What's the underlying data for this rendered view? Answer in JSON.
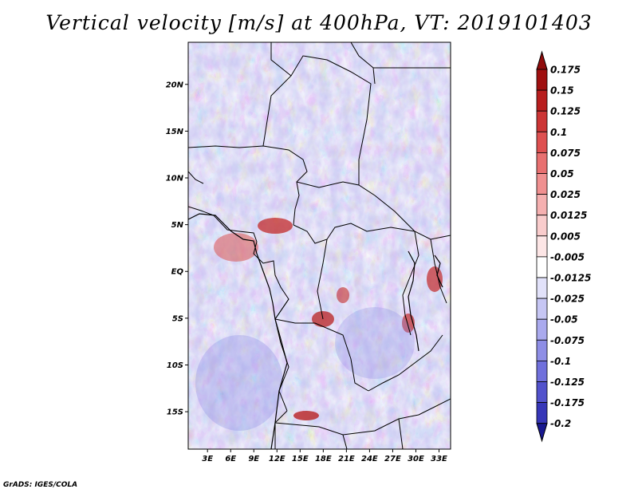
{
  "title": "Vertical velocity [m/s] at 400hPa, VT: 2019101403",
  "footer": "GrADS: IGES/COLA",
  "map": {
    "lat_range": [
      -19,
      24.5
    ],
    "lon_range": [
      0.5,
      34.5
    ],
    "lat_ticks": [
      {
        "value": 20,
        "label": "20N"
      },
      {
        "value": 15,
        "label": "15N"
      },
      {
        "value": 10,
        "label": "10N"
      },
      {
        "value": 5,
        "label": "5N"
      },
      {
        "value": 0,
        "label": "EQ"
      },
      {
        "value": -5,
        "label": "5S"
      },
      {
        "value": -10,
        "label": "10S"
      },
      {
        "value": -15,
        "label": "15S"
      }
    ],
    "lon_ticks": [
      {
        "value": 3,
        "label": "3E"
      },
      {
        "value": 6,
        "label": "6E"
      },
      {
        "value": 9,
        "label": "9E"
      },
      {
        "value": 12,
        "label": "12E"
      },
      {
        "value": 15,
        "label": "15E"
      },
      {
        "value": 18,
        "label": "18E"
      },
      {
        "value": 21,
        "label": "21E"
      },
      {
        "value": 24,
        "label": "24E"
      },
      {
        "value": 27,
        "label": "27E"
      },
      {
        "value": 30,
        "label": "30E"
      },
      {
        "value": 33,
        "label": "33E"
      }
    ]
  },
  "colorbar": {
    "levels": [
      {
        "label": "0.175",
        "color": "#a01010"
      },
      {
        "label": "0.15",
        "color": "#b81e1e"
      },
      {
        "label": "0.125",
        "color": "#cc3535"
      },
      {
        "label": "0.1",
        "color": "#de5050"
      },
      {
        "label": "0.075",
        "color": "#e87070"
      },
      {
        "label": "0.05",
        "color": "#f09090"
      },
      {
        "label": "0.025",
        "color": "#f5b0b0"
      },
      {
        "label": "0.0125",
        "color": "#f9cccc"
      },
      {
        "label": "0.005",
        "color": "#fde6e6"
      },
      {
        "label": "-0.005",
        "color": "#ffffff"
      },
      {
        "label": "-0.0125",
        "color": "#e2e2fa"
      },
      {
        "label": "-0.025",
        "color": "#c6c6f4"
      },
      {
        "label": "-0.05",
        "color": "#aaaaee"
      },
      {
        "label": "-0.075",
        "color": "#8e8ee6"
      },
      {
        "label": "-0.1",
        "color": "#7070dc"
      },
      {
        "label": "-0.125",
        "color": "#5252cc"
      },
      {
        "label": "-0.175",
        "color": "#3636b8"
      },
      {
        "label": "-0.2",
        "color": "#2020a0"
      }
    ],
    "max_color": "#900c0c",
    "min_color": "#181890"
  }
}
